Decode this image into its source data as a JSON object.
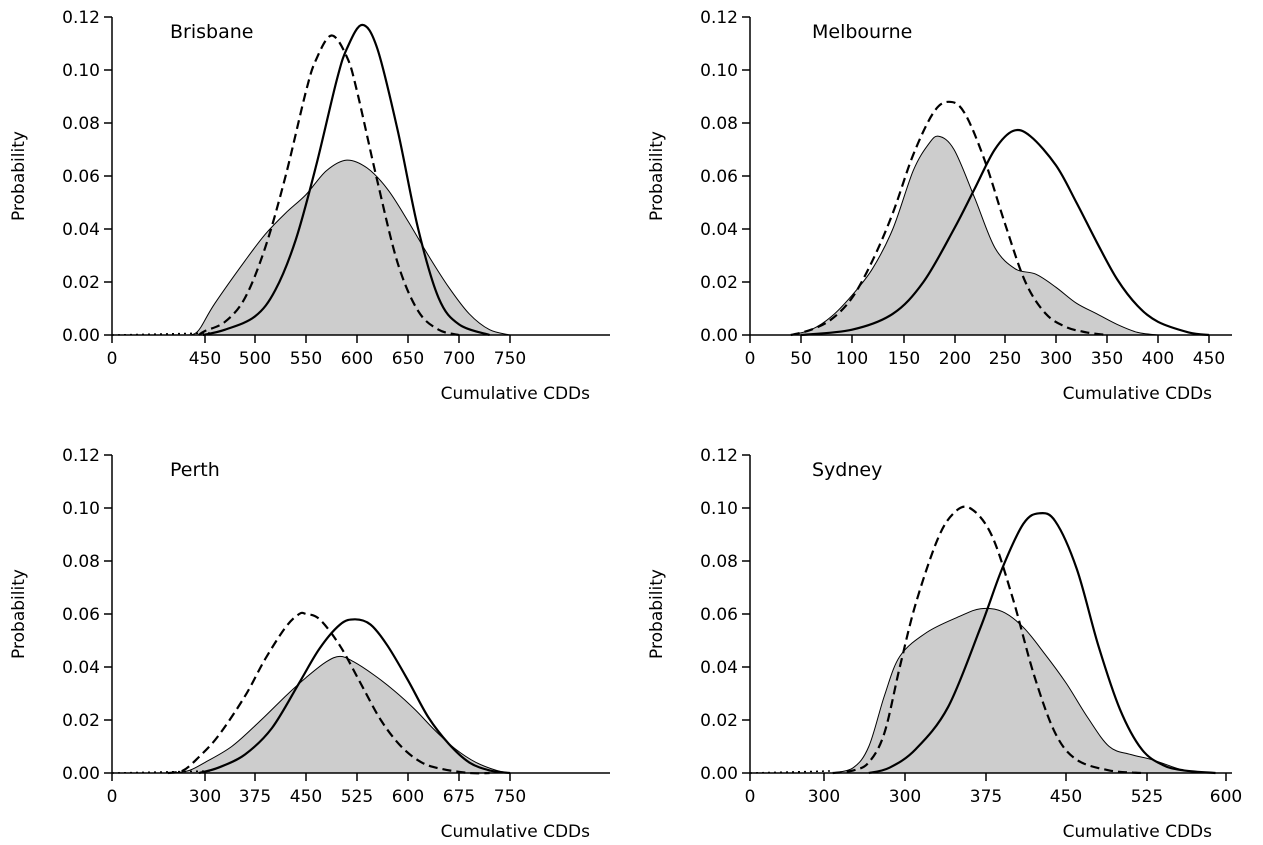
{
  "chart_data": [
    {
      "type": "area",
      "title": "Brisbane",
      "xlabel": "Cumulative CDDs",
      "ylabel": "Probability",
      "ylim": [
        0,
        0.12
      ],
      "yticks": [
        "0.00",
        "0.02",
        "0.04",
        "0.06",
        "0.08",
        "0.10",
        "0.12"
      ],
      "xticks": [
        "0",
        "450",
        "500",
        "550",
        "600",
        "650",
        "700",
        "750"
      ],
      "grid": false,
      "series": [
        {
          "style": "filled-gray",
          "x": [
            370,
            400,
            430,
            460,
            490,
            510,
            530,
            550,
            570,
            590,
            610,
            630,
            650,
            670,
            690,
            710,
            730,
            750
          ],
          "y": [
            0.0,
            0.0005,
            0.003,
            0.012,
            0.028,
            0.038,
            0.046,
            0.053,
            0.062,
            0.066,
            0.063,
            0.055,
            0.043,
            0.03,
            0.018,
            0.008,
            0.002,
            0.0
          ]
        },
        {
          "style": "dashed",
          "x": [
            420,
            450,
            470,
            490,
            510,
            530,
            550,
            560,
            575,
            590,
            600,
            620,
            640,
            660,
            680,
            700
          ],
          "y": [
            0.0,
            0.0015,
            0.005,
            0.014,
            0.033,
            0.06,
            0.092,
            0.104,
            0.113,
            0.105,
            0.092,
            0.058,
            0.027,
            0.009,
            0.002,
            0.0
          ]
        },
        {
          "style": "solid",
          "x": [
            440,
            470,
            500,
            520,
            540,
            560,
            580,
            590,
            605,
            620,
            640,
            660,
            680,
            700,
            730
          ],
          "y": [
            0.0,
            0.002,
            0.007,
            0.017,
            0.036,
            0.064,
            0.096,
            0.108,
            0.117,
            0.108,
            0.077,
            0.04,
            0.014,
            0.004,
            0.0
          ]
        }
      ]
    },
    {
      "type": "area",
      "title": "Melbourne",
      "xlabel": "Cumulative CDDs",
      "ylabel": "Probability",
      "ylim": [
        0,
        0.12
      ],
      "yticks": [
        "0.00",
        "0.02",
        "0.04",
        "0.06",
        "0.08",
        "0.10",
        "0.12"
      ],
      "xticks": [
        "0",
        "50",
        "100",
        "150",
        "200",
        "250",
        "300",
        "350",
        "400",
        "450"
      ],
      "grid": false,
      "series": [
        {
          "style": "filled-gray",
          "x": [
            40,
            60,
            80,
            100,
            120,
            140,
            160,
            175,
            185,
            200,
            220,
            240,
            260,
            280,
            300,
            320,
            340,
            360,
            380,
            400
          ],
          "y": [
            0.0,
            0.002,
            0.007,
            0.015,
            0.025,
            0.04,
            0.062,
            0.072,
            0.075,
            0.07,
            0.052,
            0.033,
            0.025,
            0.023,
            0.018,
            0.012,
            0.008,
            0.004,
            0.001,
            0.0
          ]
        },
        {
          "style": "dashed",
          "x": [
            40,
            60,
            80,
            100,
            120,
            140,
            160,
            180,
            195,
            210,
            230,
            250,
            270,
            290,
            310,
            330,
            350
          ],
          "y": [
            0.0,
            0.002,
            0.006,
            0.014,
            0.028,
            0.046,
            0.068,
            0.084,
            0.088,
            0.084,
            0.066,
            0.042,
            0.02,
            0.008,
            0.003,
            0.001,
            0.0
          ]
        },
        {
          "style": "solid",
          "x": [
            50,
            100,
            140,
            170,
            200,
            220,
            240,
            258,
            275,
            300,
            320,
            340,
            360,
            380,
            400,
            430,
            450
          ],
          "y": [
            0.0,
            0.002,
            0.008,
            0.02,
            0.04,
            0.055,
            0.07,
            0.077,
            0.075,
            0.064,
            0.05,
            0.035,
            0.021,
            0.011,
            0.005,
            0.001,
            0.0
          ]
        }
      ]
    },
    {
      "type": "area",
      "title": "Perth",
      "xlabel": "Cumulative CDDs",
      "ylabel": "Probability",
      "ylim": [
        0,
        0.12
      ],
      "yticks": [
        "0.00",
        "0.02",
        "0.04",
        "0.06",
        "0.08",
        "0.10",
        "0.12"
      ],
      "xticks": [
        "0",
        "300",
        "375",
        "450",
        "525",
        "600",
        "675",
        "750"
      ],
      "grid": false,
      "series": [
        {
          "style": "filled-gray",
          "x": [
            200,
            250,
            300,
            340,
            380,
            420,
            450,
            480,
            500,
            520,
            550,
            580,
            610,
            640,
            670,
            700,
            730,
            750
          ],
          "y": [
            0.0,
            0.001,
            0.004,
            0.01,
            0.019,
            0.029,
            0.036,
            0.042,
            0.044,
            0.042,
            0.037,
            0.031,
            0.024,
            0.016,
            0.009,
            0.004,
            0.001,
            0.0
          ]
        },
        {
          "style": "dashed",
          "x": [
            180,
            230,
            280,
            320,
            360,
            390,
            420,
            440,
            450,
            470,
            500,
            530,
            560,
            590,
            620,
            650,
            690,
            720
          ],
          "y": [
            0.0,
            0.001,
            0.006,
            0.014,
            0.029,
            0.043,
            0.055,
            0.06,
            0.06,
            0.058,
            0.048,
            0.034,
            0.02,
            0.01,
            0.004,
            0.0015,
            0.0,
            0.0
          ]
        },
        {
          "style": "solid",
          "x": [
            280,
            320,
            360,
            400,
            440,
            470,
            500,
            522,
            545,
            570,
            600,
            630,
            660,
            690,
            720,
            750
          ],
          "y": [
            0.0,
            0.002,
            0.007,
            0.017,
            0.034,
            0.047,
            0.056,
            0.058,
            0.056,
            0.048,
            0.035,
            0.021,
            0.011,
            0.004,
            0.001,
            0.0
          ]
        }
      ]
    },
    {
      "type": "area",
      "title": "Sydney",
      "xlabel": "Cumulative CDDs",
      "ylabel": "Probability",
      "ylim": [
        0,
        0.12
      ],
      "yticks": [
        "0.00",
        "0.02",
        "0.04",
        "0.06",
        "0.08",
        "0.10",
        "0.12"
      ],
      "xticks": [
        "0",
        "300",
        "300",
        "375",
        "450",
        "525",
        "600"
      ],
      "grid": false,
      "series": [
        {
          "style": "filled-gray",
          "x": [
            160,
            200,
            230,
            260,
            290,
            320,
            350,
            370,
            390,
            410,
            430,
            450,
            470,
            490,
            510,
            530,
            560,
            580
          ],
          "y": [
            0.0,
            0.002,
            0.01,
            0.029,
            0.044,
            0.053,
            0.059,
            0.062,
            0.061,
            0.055,
            0.045,
            0.034,
            0.021,
            0.01,
            0.007,
            0.005,
            0.001,
            0.0
          ]
        },
        {
          "style": "dashed",
          "x": [
            160,
            200,
            230,
            260,
            290,
            310,
            330,
            345,
            360,
            380,
            400,
            420,
            440,
            460,
            490,
            520
          ],
          "y": [
            0.0,
            0.001,
            0.004,
            0.015,
            0.04,
            0.064,
            0.088,
            0.098,
            0.1,
            0.09,
            0.066,
            0.037,
            0.015,
            0.005,
            0.001,
            0.0
          ]
        },
        {
          "style": "solid",
          "x": [
            230,
            270,
            310,
            340,
            370,
            390,
            410,
            425,
            440,
            460,
            480,
            500,
            520,
            540,
            560,
            590
          ],
          "y": [
            0.0,
            0.002,
            0.009,
            0.025,
            0.055,
            0.077,
            0.094,
            0.098,
            0.095,
            0.077,
            0.048,
            0.024,
            0.009,
            0.003,
            0.001,
            0.0
          ]
        }
      ]
    }
  ]
}
